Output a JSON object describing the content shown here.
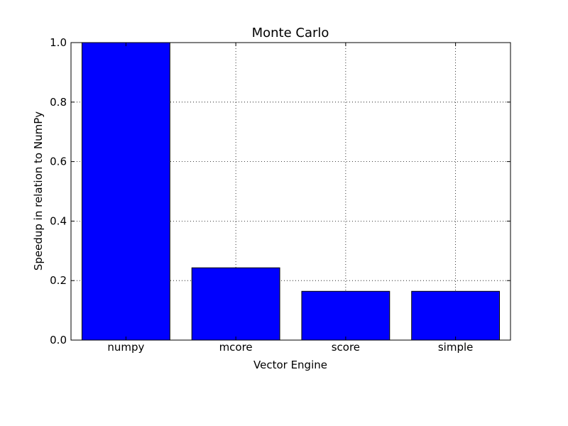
{
  "chart_data": {
    "type": "bar",
    "title": "Monte Carlo",
    "xlabel": "Vector Engine",
    "ylabel": "Speedup in relation to NumPy",
    "categories": [
      "numpy",
      "mcore",
      "score",
      "simple"
    ],
    "values": [
      1.0,
      0.243,
      0.164,
      0.164
    ],
    "ylim": [
      0,
      1.0
    ],
    "yticks": [
      "0.0",
      "0.2",
      "0.4",
      "0.6",
      "0.8",
      "1.0"
    ],
    "grid": true,
    "bar_color": "#0000ff"
  }
}
